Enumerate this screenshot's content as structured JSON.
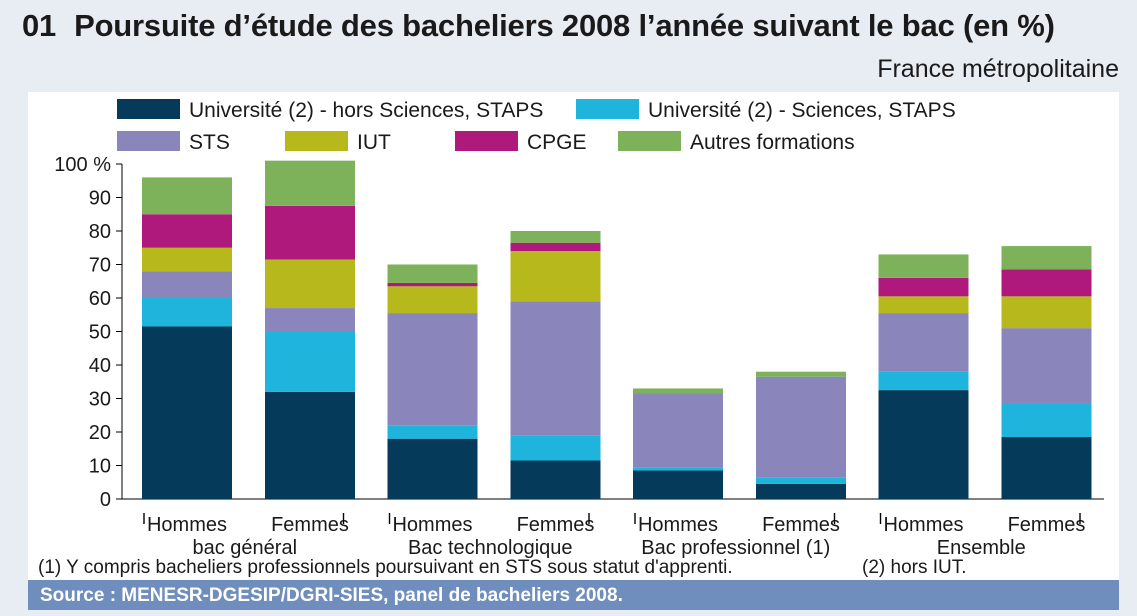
{
  "header": {
    "number": "01",
    "title": "Poursuite d’étude des bacheliers 2008 l’année suivant le bac (en %)",
    "subtitle": "France métropolitaine"
  },
  "notes": {
    "note1": "(1) Y compris bacheliers professionnels poursuivant en STS sous statut d'apprenti.",
    "note2": "(2) hors IUT."
  },
  "source": "Source : MENESR-DGESIP/DGRI-SIES, panel de bacheliers 2008.",
  "chart_data": {
    "type": "bar",
    "stacked": true,
    "ylim": [
      0,
      100
    ],
    "ytick_labels": [
      "0",
      "10",
      "20",
      "30",
      "40",
      "50",
      "60",
      "70",
      "80",
      "90",
      "100 %"
    ],
    "groups": [
      {
        "label": "bac général",
        "bars": [
          "Hommes",
          "Femmes"
        ]
      },
      {
        "label": "Bac technologique",
        "bars": [
          "Hommes",
          "Femmes"
        ]
      },
      {
        "label": "Bac professionnel (1)",
        "bars": [
          "Hommes",
          "Femmes"
        ]
      },
      {
        "label": "Ensemble",
        "bars": [
          "Hommes",
          "Femmes"
        ]
      }
    ],
    "series": [
      {
        "name": "Université (2) - hors Sciences, STAPS",
        "color": "#063a5a",
        "values": [
          51.5,
          32,
          18,
          11.5,
          8.5,
          4.5,
          32.5,
          18.5
        ]
      },
      {
        "name": "Université (2) - Sciences, STAPS",
        "color": "#1eb4dc",
        "values": [
          8.5,
          18,
          4,
          7.5,
          1,
          2,
          5.5,
          10
        ]
      },
      {
        "name": "STS",
        "color": "#8a86bc",
        "values": [
          8,
          7,
          33.5,
          40,
          22,
          30,
          17.5,
          22.5
        ]
      },
      {
        "name": "IUT",
        "color": "#b6b81c",
        "values": [
          7,
          14.5,
          8,
          15,
          0,
          0,
          5,
          9.5
        ]
      },
      {
        "name": "CPGE",
        "color": "#b0197c",
        "values": [
          10,
          16,
          1,
          2.5,
          0,
          0,
          5.5,
          8
        ]
      },
      {
        "name": "Autres formations",
        "color": "#7db25a",
        "values": [
          11,
          13.5,
          5.5,
          3.5,
          1.5,
          1.5,
          7,
          7
        ]
      }
    ]
  }
}
